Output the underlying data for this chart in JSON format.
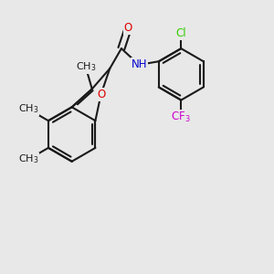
{
  "background_color": "#e8e8e8",
  "bond_color": "#1a1a1a",
  "bond_width": 1.5,
  "atom_colors": {
    "O": "#dd0000",
    "N": "#0000cc",
    "Cl": "#33cc00",
    "F": "#cc00cc"
  },
  "font_size": 8.5
}
